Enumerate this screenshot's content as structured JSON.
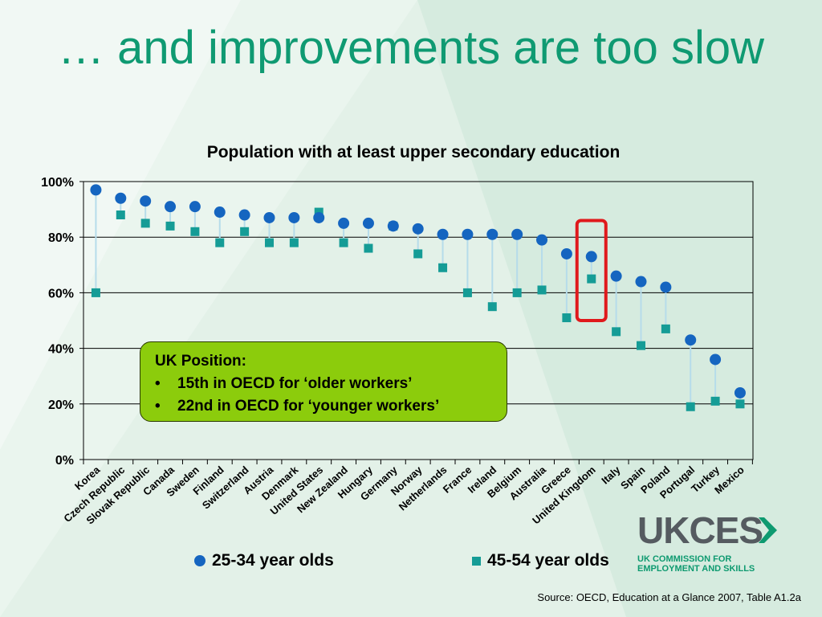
{
  "slide": {
    "title": "… and improvements are too slow",
    "source": "Source:  OECD, Education at a Glance 2007,  Table A1.2a"
  },
  "callout": {
    "heading": "UK Position:",
    "bullets": [
      "15th in OECD for ‘older workers’",
      "22nd in OECD for ‘younger workers’"
    ]
  },
  "logo": {
    "wordmark": "UKCES",
    "line1": "UK COMMISSION FOR",
    "line2": "EMPLOYMENT AND SKILLS"
  },
  "colors": {
    "title": "#0f9a72",
    "series_young": "#1565c0",
    "series_old": "#159c96",
    "highlight_box": "#e0191c",
    "callout_fill": "#8ccc0c"
  },
  "chart_data": {
    "type": "scatter",
    "title": "Population with at least upper secondary education",
    "xlabel": "",
    "ylabel": "",
    "ylim": [
      0,
      100
    ],
    "yticks": [
      "0%",
      "20%",
      "40%",
      "60%",
      "80%",
      "100%"
    ],
    "grid": true,
    "legend_position": "bottom",
    "highlight": "United Kingdom",
    "categories": [
      "Korea",
      "Czech Republic",
      "Slovak Republic",
      "Canada",
      "Sweden",
      "Finland",
      "Switzerland",
      "Austria",
      "Denmark",
      "United States",
      "New Zealand",
      "Hungary",
      "Germany",
      "Norway",
      "Netherlands",
      "France",
      "Ireland",
      "Belgium",
      "Australia",
      "Greece",
      "United Kingdom",
      "Italy",
      "Spain",
      "Poland",
      "Portugal",
      "Turkey",
      "Mexico"
    ],
    "series": [
      {
        "name": "25-34 year olds",
        "marker": "circle",
        "values": [
          97,
          94,
          93,
          91,
          91,
          89,
          88,
          87,
          87,
          87,
          85,
          85,
          84,
          83,
          81,
          81,
          81,
          81,
          79,
          74,
          73,
          66,
          64,
          62,
          43,
          36,
          24
        ]
      },
      {
        "name": "45-54 year olds",
        "marker": "square",
        "values": [
          60,
          88,
          85,
          84,
          82,
          78,
          82,
          78,
          78,
          89,
          78,
          76,
          84,
          74,
          69,
          60,
          55,
          60,
          61,
          51,
          65,
          46,
          41,
          47,
          19,
          21,
          20
        ]
      }
    ]
  }
}
